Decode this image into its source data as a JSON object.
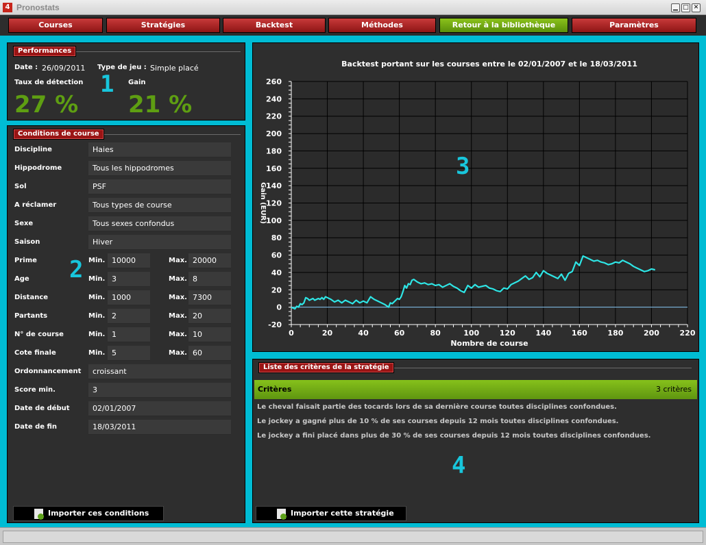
{
  "window": {
    "title": "Pronostats",
    "app_icon": "4",
    "minimize": "▁",
    "maximize": "□",
    "close": "✕"
  },
  "menu": {
    "courses": "Courses",
    "strategies": "Stratégies",
    "backtest": "Backtest",
    "methodes": "Méthodes",
    "retour": "Retour à la bibliothèque",
    "parametres": "Paramètres"
  },
  "performances": {
    "legend": "Performances",
    "date_label": "Date :",
    "date_value": "26/09/2011",
    "type_label": "Type de jeu :",
    "type_value": "Simple placé",
    "taux_label": "Taux de détection",
    "taux_value": "27 %",
    "gain_label": "Gain",
    "gain_value": "21 %",
    "marker": "1"
  },
  "conditions": {
    "legend": "Conditions de course",
    "marker": "2",
    "min_label": "Min.",
    "max_label": "Max.",
    "rows": [
      {
        "label": "Discipline",
        "value": "Haies"
      },
      {
        "label": "Hippodrome",
        "value": "Tous les hippodromes"
      },
      {
        "label": "Sol",
        "value": "PSF"
      },
      {
        "label": "A réclamer",
        "value": "Tous types de course"
      },
      {
        "label": "Sexe",
        "value": "Tous sexes confondus"
      },
      {
        "label": "Saison",
        "value": "Hiver"
      }
    ],
    "ranges": [
      {
        "label": "Prime",
        "min": "10000",
        "max": "20000"
      },
      {
        "label": "Age",
        "min": "3",
        "max": "8"
      },
      {
        "label": "Distance",
        "min": "1000",
        "max": "7300"
      },
      {
        "label": "Partants",
        "min": "2",
        "max": "20"
      },
      {
        "label": "N° de course",
        "min": "1",
        "max": "10"
      },
      {
        "label": "Cote finale",
        "min": "5",
        "max": "60"
      }
    ],
    "rows2": [
      {
        "label": "Ordonnancement",
        "value": "croissant"
      },
      {
        "label": "Score min.",
        "value": "3"
      },
      {
        "label": "Date de début",
        "value": "02/01/2007"
      },
      {
        "label": "Date de fin",
        "value": "18/03/2011"
      }
    ],
    "import_button": "Importer ces conditions"
  },
  "chart_panel": {
    "marker": "3"
  },
  "chart_data": {
    "type": "line",
    "title": "Backtest portant sur les courses entre le 02/01/2007 et le 18/03/2011",
    "xlabel": "Nombre de course",
    "ylabel": "Gain (EUR)",
    "xlim": [
      0,
      220
    ],
    "ylim": [
      -20,
      260
    ],
    "xticks": [
      0,
      20,
      40,
      60,
      80,
      100,
      120,
      140,
      160,
      180,
      200,
      220
    ],
    "yticks": [
      -20,
      0,
      20,
      40,
      60,
      80,
      100,
      120,
      140,
      160,
      180,
      200,
      220,
      240,
      260
    ],
    "grid": true,
    "line_color": "#2ee6e6",
    "series": [
      {
        "x": [
          0,
          2,
          3,
          4,
          5,
          6,
          7,
          8,
          9,
          10,
          11,
          12,
          13,
          14,
          15,
          16,
          17,
          18,
          19,
          20,
          22,
          24,
          26,
          28,
          30,
          32,
          34,
          36,
          38,
          40,
          42,
          44,
          46,
          48,
          50,
          52,
          54,
          55,
          56,
          57,
          58,
          59,
          60,
          61,
          62,
          63,
          64,
          65,
          66,
          67,
          68,
          70,
          72,
          74,
          76,
          78,
          80,
          82,
          84,
          86,
          88,
          90,
          92,
          94,
          96,
          98,
          100,
          102,
          104,
          106,
          108,
          110,
          112,
          114,
          116,
          118,
          120,
          122,
          124,
          126,
          128,
          130,
          132,
          134,
          136,
          138,
          140,
          142,
          144,
          146,
          148,
          150,
          152,
          154,
          156,
          158,
          160,
          162,
          164,
          166,
          168,
          170,
          172,
          174,
          176,
          178,
          180,
          182,
          184,
          186,
          188,
          190,
          192,
          194,
          196,
          198,
          200,
          202
        ],
        "y": [
          0,
          -2,
          1,
          0,
          4,
          3,
          5,
          11,
          10,
          8,
          9,
          10,
          8,
          9,
          10,
          9,
          11,
          9,
          12,
          11,
          9,
          6,
          8,
          5,
          8,
          6,
          4,
          8,
          5,
          7,
          5,
          12,
          9,
          7,
          5,
          3,
          0,
          5,
          4,
          6,
          8,
          10,
          9,
          12,
          18,
          25,
          22,
          27,
          26,
          31,
          32,
          29,
          27,
          28,
          26,
          27,
          25,
          26,
          23,
          25,
          27,
          24,
          22,
          19,
          17,
          25,
          22,
          26,
          23,
          24,
          25,
          22,
          21,
          19,
          18,
          22,
          21,
          26,
          28,
          30,
          33,
          36,
          32,
          34,
          40,
          35,
          42,
          39,
          37,
          35,
          33,
          38,
          31,
          39,
          41,
          52,
          48,
          59,
          57,
          55,
          53,
          54,
          52,
          51,
          49,
          50,
          52,
          51,
          54,
          52,
          50,
          47,
          45,
          43,
          41,
          42,
          44,
          43
        ]
      }
    ]
  },
  "criteres": {
    "legend": "Liste des critères de la stratégie",
    "header": "Critères",
    "count": "3 critères",
    "items": [
      "Le cheval faisait partie des tocards lors de sa dernière course toutes disciplines confondues.",
      "Le jockey a gagné plus de 10 % de ses courses depuis 12 mois toutes disciplines confondues.",
      "Le jockey a fini placé dans plus de 30 % de ses courses depuis 12 mois toutes disciplines confondues."
    ],
    "marker": "4",
    "import_button": "Importer cette stratégie"
  }
}
